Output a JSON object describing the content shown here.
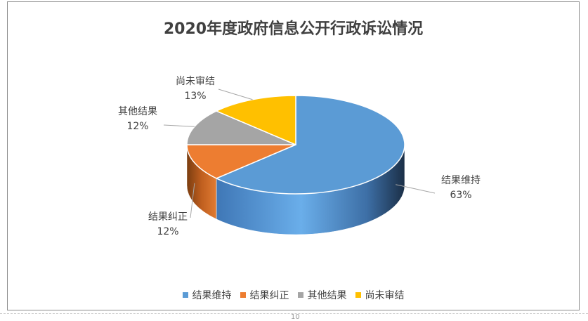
{
  "chart_data": {
    "type": "pie",
    "title": "2020年度政府信息公开行政诉讼情况",
    "categories": [
      "结果维持",
      "结果纠正",
      "其他结果",
      "尚未审结"
    ],
    "values": [
      63,
      12,
      12,
      13
    ],
    "labels": [
      "63%",
      "12%",
      "12%",
      "13%"
    ],
    "colors": [
      "#5b9bd5",
      "#ed7d31",
      "#a5a5a5",
      "#ffc000"
    ],
    "legend_position": "bottom",
    "style": "3d"
  },
  "page": {
    "number": "10"
  }
}
